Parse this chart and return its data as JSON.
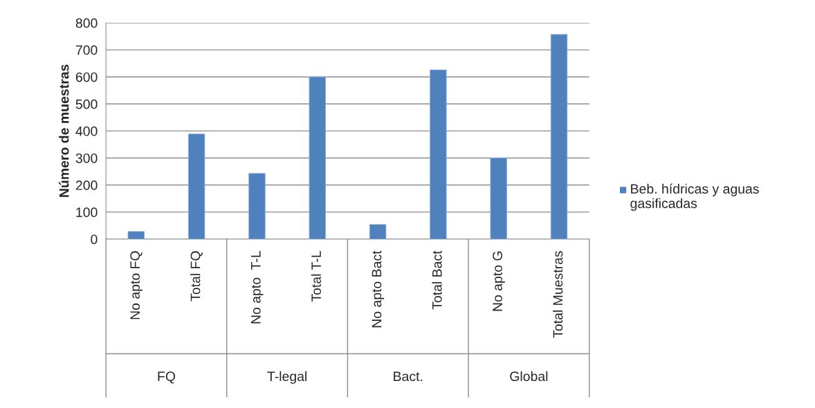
{
  "chart_data": {
    "type": "bar",
    "ylabel": "Número de muestras",
    "categories": [
      "No apto FQ",
      "Total FQ",
      "No apto  T-L",
      "Total T-L",
      "No apto Bact",
      "Total Bact",
      "No apto G",
      "Total Muestras"
    ],
    "series": [
      {
        "name": "Beb. hídricas y aguas gasificadas",
        "color": "#4f81bd",
        "values": [
          28,
          389,
          243,
          600,
          54,
          626,
          300,
          757
        ]
      }
    ],
    "annotations": [
      "FQ",
      "T-legal",
      "Bact.",
      "Global"
    ],
    "ylim": [
      0,
      800
    ],
    "yticks": [
      0,
      100,
      200,
      300,
      400,
      500,
      600,
      700,
      800
    ],
    "grid": "y",
    "legend": "right"
  }
}
